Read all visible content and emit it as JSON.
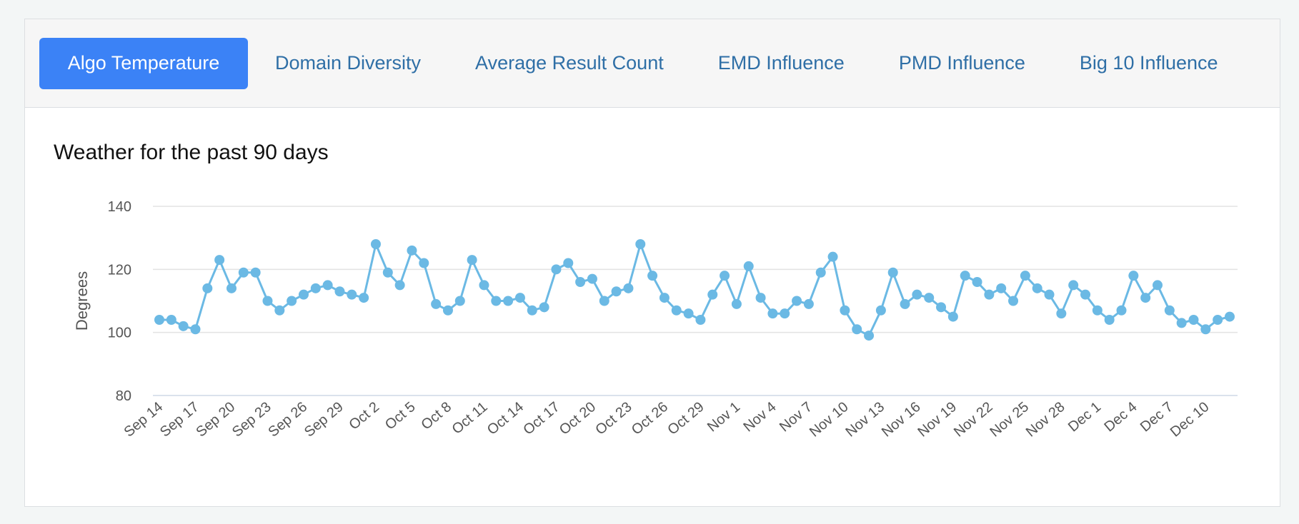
{
  "tabs": [
    {
      "label": "Algo Temperature",
      "active": true
    },
    {
      "label": "Domain Diversity",
      "active": false
    },
    {
      "label": "Average Result Count",
      "active": false
    },
    {
      "label": "EMD Influence",
      "active": false
    },
    {
      "label": "PMD Influence",
      "active": false
    },
    {
      "label": "Big 10 Influence",
      "active": false
    }
  ],
  "colors": {
    "accent": "#3b82f6",
    "line": "#6bb9e4",
    "tab_text": "#2f6fa6",
    "grid": "#e3e3e3"
  },
  "chart_data": {
    "type": "line",
    "title": "Weather for the past 90 days",
    "xlabel": "",
    "ylabel": "Degrees",
    "ylim": [
      80,
      140
    ],
    "yticks": [
      80,
      100,
      120,
      140
    ],
    "grid": true,
    "x_tick_labels": [
      "Sep 14",
      "Sep 17",
      "Sep 20",
      "Sep 23",
      "Sep 26",
      "Sep 29",
      "Oct 2",
      "Oct 5",
      "Oct 8",
      "Oct 11",
      "Oct 14",
      "Oct 17",
      "Oct 20",
      "Oct 23",
      "Oct 26",
      "Oct 29",
      "Nov 1",
      "Nov 4",
      "Nov 7",
      "Nov 10",
      "Nov 13",
      "Nov 16",
      "Nov 19",
      "Nov 22",
      "Nov 25",
      "Nov 28",
      "Dec 1",
      "Dec 4",
      "Dec 7",
      "Dec 10"
    ],
    "series": [
      {
        "values": [
          104,
          104,
          102,
          101,
          114,
          123,
          114,
          119,
          119,
          110,
          107,
          110,
          112,
          114,
          115,
          113,
          112,
          111,
          128,
          119,
          115,
          126,
          122,
          109,
          107,
          110,
          123,
          115,
          110,
          110,
          111,
          107,
          108,
          120,
          122,
          116,
          117,
          110,
          113,
          114,
          128,
          118,
          111,
          107,
          106,
          104,
          112,
          118,
          109,
          121,
          111,
          106,
          106,
          110,
          109,
          119,
          124,
          107,
          101,
          99,
          107,
          119,
          109,
          112,
          111,
          108,
          105,
          118,
          116,
          112,
          114,
          110,
          118,
          114,
          112,
          106,
          115,
          112,
          107,
          104,
          107,
          118,
          111,
          115,
          107,
          103,
          104,
          101,
          104,
          105
        ]
      }
    ]
  }
}
